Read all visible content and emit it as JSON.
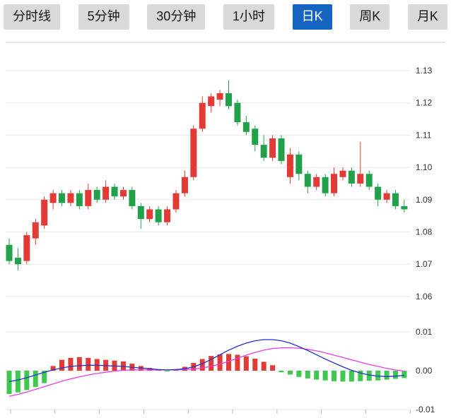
{
  "toolbar": {
    "buttons": [
      {
        "label": "分时线",
        "active": false
      },
      {
        "label": "5分钟",
        "active": false
      },
      {
        "label": "30分钟",
        "active": false
      },
      {
        "label": "1小时",
        "active": false
      },
      {
        "label": "日K",
        "active": true
      },
      {
        "label": "周K",
        "active": false
      },
      {
        "label": "月K",
        "active": false
      }
    ]
  },
  "colors": {
    "up": "#e23b35",
    "down": "#21a24a",
    "hist_up": "#e23b35",
    "hist_down": "#3fc84f",
    "dif_line": "#2233cc",
    "dea_line": "#e93de9",
    "grid": "#e8e8e8",
    "axis_text": "#333333",
    "separator": "#cccccc",
    "button_bg": "#d9d9d9",
    "active_button_bg": "#1565c0"
  },
  "chart_data": {
    "type": "candlestick",
    "title": "",
    "legend_position": "none",
    "grid": true,
    "price_axis": {
      "ticks": [
        1.13,
        1.12,
        1.11,
        1.1,
        1.09,
        1.08,
        1.07,
        1.06
      ],
      "side": "right"
    },
    "macd_axis": {
      "ticks": [
        0.01,
        0.0,
        -0.01
      ],
      "side": "right"
    },
    "candles": [
      [
        1.076,
        1.078,
        1.07,
        1.071
      ],
      [
        1.072,
        1.075,
        1.068,
        1.07
      ],
      [
        1.071,
        1.08,
        1.07,
        1.079
      ],
      [
        1.078,
        1.084,
        1.076,
        1.083
      ],
      [
        1.082,
        1.091,
        1.081,
        1.09
      ],
      [
        1.089,
        1.093,
        1.087,
        1.092
      ],
      [
        1.092,
        1.093,
        1.088,
        1.089
      ],
      [
        1.089,
        1.093,
        1.088,
        1.092
      ],
      [
        1.092,
        1.093,
        1.087,
        1.088
      ],
      [
        1.088,
        1.095,
        1.087,
        1.093
      ],
      [
        1.093,
        1.094,
        1.089,
        1.09
      ],
      [
        1.09,
        1.096,
        1.089,
        1.094
      ],
      [
        1.094,
        1.095,
        1.09,
        1.091
      ],
      [
        1.091,
        1.094,
        1.09,
        1.093
      ],
      [
        1.093,
        1.094,
        1.087,
        1.088
      ],
      [
        1.088,
        1.089,
        1.081,
        1.084
      ],
      [
        1.084,
        1.088,
        1.083,
        1.087
      ],
      [
        1.087,
        1.088,
        1.082,
        1.083
      ],
      [
        1.083,
        1.088,
        1.082,
        1.087
      ],
      [
        1.087,
        1.093,
        1.086,
        1.092
      ],
      [
        1.092,
        1.099,
        1.091,
        1.097
      ],
      [
        1.097,
        1.113,
        1.096,
        1.112
      ],
      [
        1.112,
        1.122,
        1.111,
        1.12
      ],
      [
        1.119,
        1.123,
        1.117,
        1.122
      ],
      [
        1.121,
        1.124,
        1.119,
        1.123
      ],
      [
        1.123,
        1.127,
        1.118,
        1.119
      ],
      [
        1.12,
        1.121,
        1.113,
        1.114
      ],
      [
        1.114,
        1.116,
        1.11,
        1.111
      ],
      [
        1.112,
        1.113,
        1.105,
        1.107
      ],
      [
        1.107,
        1.11,
        1.102,
        1.103
      ],
      [
        1.103,
        1.11,
        1.102,
        1.109
      ],
      [
        1.109,
        1.11,
        1.101,
        1.102
      ],
      [
        1.097,
        1.106,
        1.095,
        1.104
      ],
      [
        1.104,
        1.105,
        1.096,
        1.098
      ],
      [
        1.098,
        1.099,
        1.092,
        1.094
      ],
      [
        1.094,
        1.098,
        1.093,
        1.097
      ],
      [
        1.097,
        1.098,
        1.091,
        1.092
      ],
      [
        1.092,
        1.1,
        1.091,
        1.098
      ],
      [
        1.097,
        1.1,
        1.096,
        1.099
      ],
      [
        1.099,
        1.1,
        1.094,
        1.095
      ],
      [
        1.095,
        1.108,
        1.094,
        1.098
      ],
      [
        1.098,
        1.099,
        1.093,
        1.094
      ],
      [
        1.094,
        1.095,
        1.088,
        1.09
      ],
      [
        1.09,
        1.093,
        1.089,
        1.092
      ],
      [
        1.092,
        1.093,
        1.087,
        1.088
      ],
      [
        1.088,
        1.09,
        1.086,
        1.087
      ]
    ],
    "macd": {
      "histogram": [
        -0.006,
        -0.0056,
        -0.005,
        -0.0042,
        -0.0032,
        0.0012,
        0.0028,
        0.0033,
        0.0035,
        0.0033,
        0.003,
        0.0028,
        0.0026,
        0.0024,
        0.0018,
        0.0012,
        0.0007,
        0.0003,
        -0.0002,
        0.0004,
        0.001,
        0.002,
        0.003,
        0.0038,
        0.0042,
        0.0043,
        0.0041,
        0.0037,
        0.0031,
        0.0023,
        0.0014,
        -0.0004,
        -0.001,
        -0.0016,
        -0.002,
        -0.0023,
        -0.0025,
        -0.0027,
        -0.0028,
        -0.0028,
        -0.0027,
        -0.0026,
        -0.0025,
        -0.0023,
        -0.0021,
        -0.0019
      ],
      "dif": [
        -0.0028,
        -0.0024,
        -0.0018,
        -0.0011,
        -0.0004,
        0.0002,
        0.0007,
        0.0011,
        0.0013,
        0.0014,
        0.0014,
        0.0013,
        0.0012,
        0.0011,
        0.0009,
        0.0007,
        0.0005,
        0.0003,
        0.0002,
        0.0003,
        0.0005,
        0.001,
        0.0018,
        0.0029,
        0.0041,
        0.0053,
        0.0063,
        0.0071,
        0.0077,
        0.008,
        0.008,
        0.0077,
        0.0071,
        0.0062,
        0.0052,
        0.0041,
        0.003,
        0.002,
        0.001,
        0.0001,
        -0.0006,
        -0.0011,
        -0.0014,
        -0.0015,
        -0.0014,
        -0.0012
      ],
      "dea": [
        -0.0066,
        -0.0061,
        -0.0055,
        -0.0048,
        -0.0041,
        -0.0034,
        -0.0027,
        -0.0021,
        -0.0016,
        -0.0011,
        -0.0007,
        -0.0004,
        -0.0001,
        0.0001,
        0.0002,
        0.0002,
        0.0002,
        0.0002,
        0.0002,
        0.0002,
        0.0003,
        0.0004,
        0.0007,
        0.0011,
        0.0017,
        0.0024,
        0.0032,
        0.004,
        0.0047,
        0.0053,
        0.0057,
        0.0059,
        0.0059,
        0.0058,
        0.0055,
        0.0051,
        0.0046,
        0.004,
        0.0034,
        0.0028,
        0.0022,
        0.0016,
        0.0011,
        0.0006,
        0.0002,
        -0.0001
      ]
    }
  }
}
